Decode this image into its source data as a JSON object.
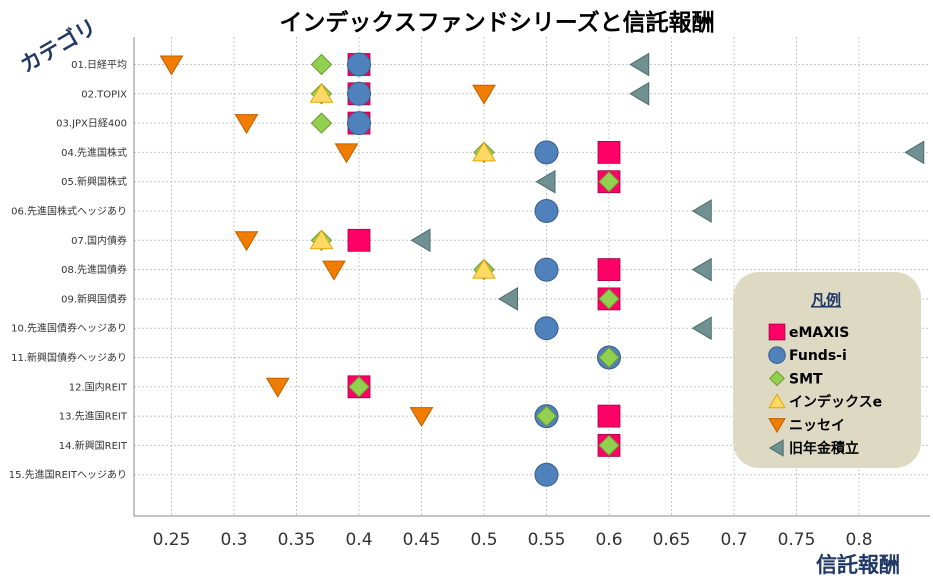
{
  "chart_data": {
    "type": "scatter",
    "title": "インデックスファンドシリーズと信託報酬",
    "xlabel": "信託報酬",
    "ylabel": "カテゴリ",
    "xlim": [
      0.22,
      0.86
    ],
    "xticks": [
      0.25,
      0.3,
      0.35,
      0.4,
      0.45,
      0.5,
      0.55,
      0.6,
      0.65,
      0.7,
      0.75,
      0.8
    ],
    "xtick_labels": [
      "0.25",
      "0.3",
      "0.35",
      "0.4",
      "0.45",
      "0.5",
      "0.55",
      "0.6",
      "0.65",
      "0.7",
      "0.75",
      "0.8"
    ],
    "categories": [
      "01.日経平均",
      "02.TOPIX",
      "03.JPX日経400",
      "04.先進国株式",
      "05.新興国株式",
      "06.先進国株式ヘッジあり",
      "07.国内債券",
      "08.先進国債券",
      "09.新興国債券",
      "10.先進国債券ヘッジあり",
      "11.新興国債券ヘッジあり",
      "12.国内REIT",
      "13.先進国REIT",
      "14.新興国REIT",
      "15.先進国REITヘッジあり"
    ],
    "grid": true,
    "legend_title": "凡例",
    "legend_position": "right",
    "series": [
      {
        "name": "eMAXIS",
        "marker": "square",
        "color": "#ff0066",
        "values": [
          0.4,
          0.4,
          0.4,
          0.6,
          0.6,
          null,
          0.4,
          0.6,
          0.6,
          null,
          null,
          0.4,
          0.6,
          0.6,
          null
        ]
      },
      {
        "name": "Funds-i",
        "marker": "circle",
        "color": "#4f81bd",
        "values": [
          0.4,
          0.4,
          0.4,
          0.55,
          null,
          0.55,
          null,
          0.55,
          null,
          0.55,
          0.6,
          null,
          0.55,
          null,
          0.55
        ]
      },
      {
        "name": "SMT",
        "marker": "diamond",
        "color": "#92d050",
        "values": [
          0.37,
          0.37,
          0.37,
          0.5,
          0.6,
          null,
          0.37,
          0.5,
          0.6,
          null,
          0.6,
          0.4,
          0.55,
          0.6,
          null
        ]
      },
      {
        "name": "インデックスe",
        "marker": "triangle-up",
        "color": "#ffd966",
        "values": [
          null,
          0.37,
          null,
          0.5,
          null,
          null,
          0.37,
          0.5,
          null,
          null,
          null,
          null,
          null,
          null,
          null
        ]
      },
      {
        "name": "ニッセイ",
        "marker": "triangle-down",
        "color": "#f07c00",
        "values": [
          0.25,
          0.5,
          0.31,
          0.39,
          null,
          null,
          0.31,
          0.38,
          null,
          null,
          null,
          0.335,
          0.45,
          null,
          null
        ]
      },
      {
        "name": "旧年金積立",
        "marker": "triangle-left",
        "color": "#6f9191",
        "values": [
          0.625,
          0.625,
          null,
          0.845,
          0.55,
          0.675,
          0.45,
          0.675,
          0.52,
          0.675,
          null,
          null,
          null,
          null,
          null
        ]
      }
    ]
  }
}
